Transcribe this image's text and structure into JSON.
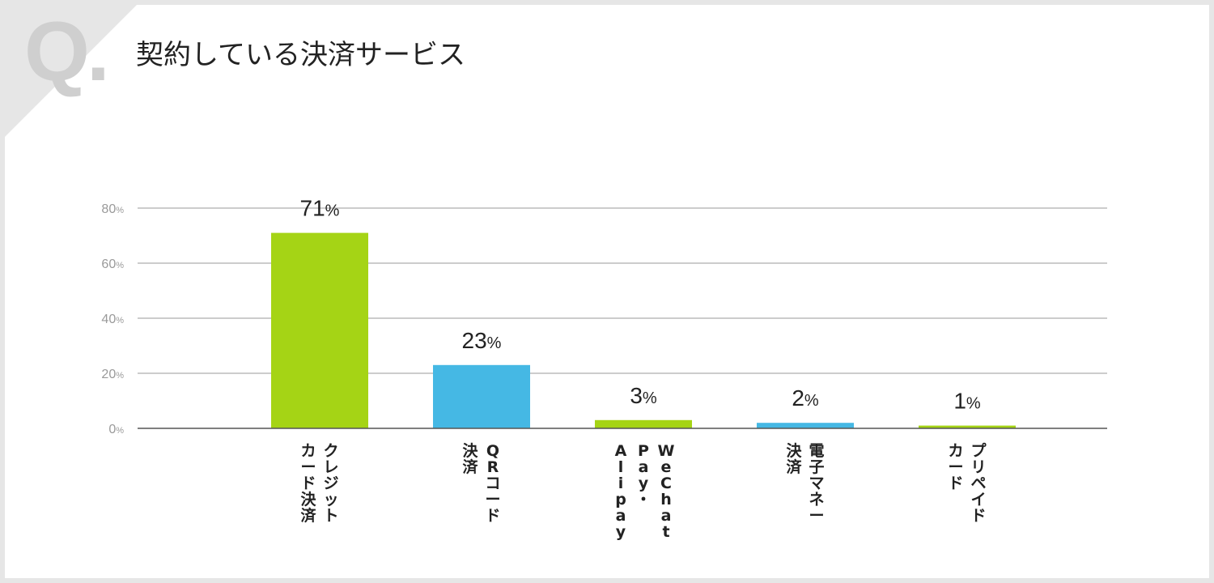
{
  "header": {
    "q_mark": "Q.",
    "title": "契約している決済サービス"
  },
  "colors": {
    "green": "#a5d415",
    "blue": "#45b8e4",
    "grid": "#9a9a9a",
    "axis": "#555555"
  },
  "chart_data": {
    "type": "bar",
    "categories": [
      [
        "クレジット",
        "カード決済"
      ],
      [
        "QRコード",
        "決済"
      ],
      [
        "WeChat",
        "Pay・",
        "Alipay"
      ],
      [
        "電子マネー",
        "決済"
      ],
      [
        "プリペイド",
        "カード"
      ]
    ],
    "values": [
      71,
      23,
      3,
      2,
      1
    ],
    "value_labels": [
      "71",
      "23",
      "3",
      "2",
      "1"
    ],
    "bar_colors": [
      "#a5d415",
      "#45b8e4",
      "#a5d415",
      "#45b8e4",
      "#a5d415"
    ],
    "unit": "%",
    "ylim": [
      0,
      80
    ],
    "yticks": [
      0,
      20,
      40,
      60,
      80
    ],
    "ytick_labels": [
      "0",
      "20",
      "40",
      "60",
      "80"
    ],
    "grid": true,
    "title": "契約している決済サービス"
  }
}
